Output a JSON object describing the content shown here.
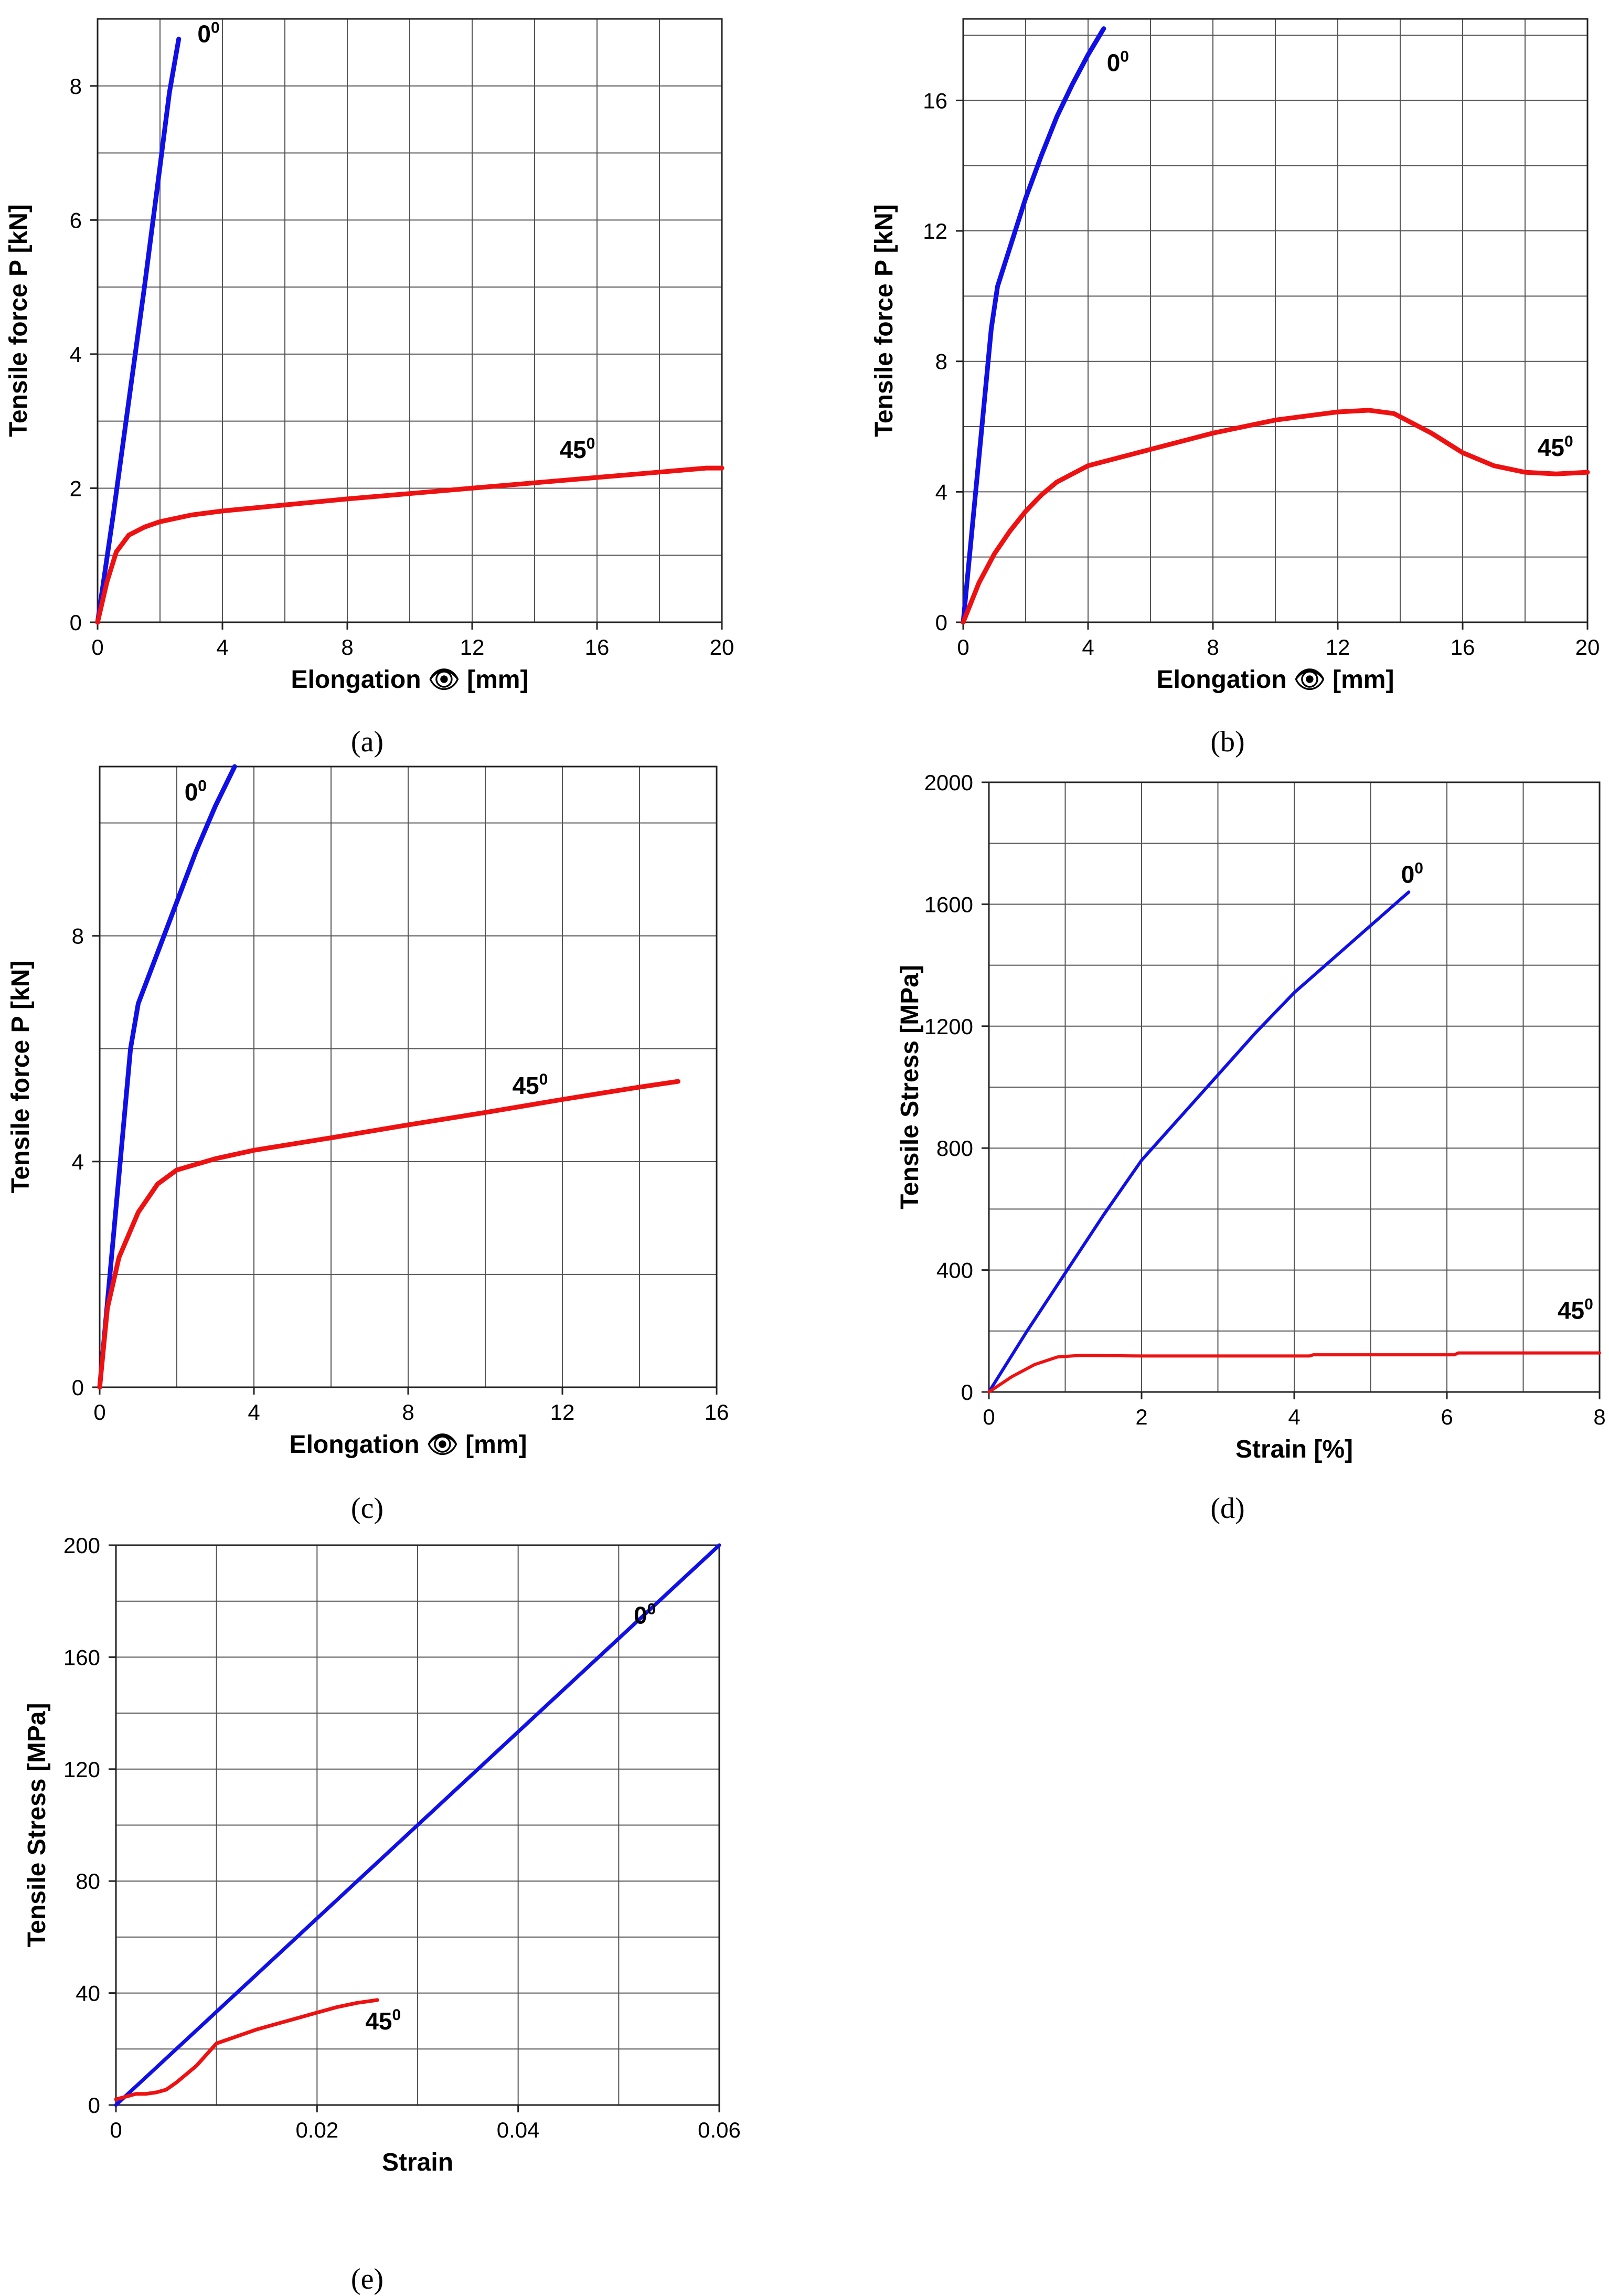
{
  "colors": {
    "s0": "#1010e6",
    "s45": "#ee1111"
  },
  "chart_data": [
    {
      "id": "a",
      "type": "line",
      "caption": "(a)",
      "xlabel": "Elongation 👁 [mm]",
      "ylabel": "Tensile force P [kN]",
      "xlim": [
        0,
        20
      ],
      "ylim": [
        0,
        9
      ],
      "xticks": [
        0,
        4,
        8,
        12,
        16,
        20
      ],
      "yticks": [
        0,
        2,
        4,
        6,
        8
      ],
      "xgrid_step": 2,
      "ygrid_step": 1,
      "series": [
        {
          "name": "0",
          "sup": "0",
          "color_key": "s0",
          "label_at": [
            3.2,
            8.65
          ],
          "x": [
            0,
            0.5,
            1.0,
            1.5,
            2.0,
            2.3,
            2.6
          ],
          "y": [
            0,
            1.6,
            3.3,
            5.0,
            6.8,
            7.9,
            8.7
          ]
        },
        {
          "name": "45",
          "sup": "0",
          "color_key": "s45",
          "label_at": [
            14.8,
            2.45
          ],
          "x": [
            0,
            0.3,
            0.6,
            1.0,
            1.5,
            2.0,
            3.0,
            4.0,
            6.0,
            8.0,
            10.0,
            12.0,
            14.0,
            16.0,
            18.0,
            19.5,
            20.0
          ],
          "y": [
            0,
            0.6,
            1.05,
            1.3,
            1.42,
            1.5,
            1.6,
            1.66,
            1.75,
            1.84,
            1.92,
            2.0,
            2.08,
            2.16,
            2.24,
            2.3,
            2.3
          ]
        }
      ]
    },
    {
      "id": "b",
      "type": "line",
      "caption": "(b)",
      "xlabel": "Elongation 👁 [mm]",
      "ylabel": "Tensile force P [kN]",
      "xlim": [
        0,
        20
      ],
      "ylim": [
        0,
        18.5
      ],
      "xticks": [
        0,
        4,
        8,
        12,
        16,
        20
      ],
      "yticks": [
        0,
        4,
        8,
        12,
        16
      ],
      "xgrid_step": 2,
      "ygrid_step": 2,
      "series": [
        {
          "name": "0",
          "sup": "0",
          "color_key": "s0",
          "label_at": [
            4.6,
            16.9
          ],
          "x": [
            0,
            0.3,
            0.6,
            0.9,
            1.1,
            1.5,
            2.0,
            2.5,
            3.0,
            3.5,
            4.0,
            4.5
          ],
          "y": [
            0,
            3.0,
            6.0,
            9.0,
            10.3,
            11.5,
            13.0,
            14.3,
            15.5,
            16.5,
            17.4,
            18.2
          ]
        },
        {
          "name": "45",
          "sup": "0",
          "color_key": "s45",
          "label_at": [
            18.4,
            5.1
          ],
          "x": [
            0,
            0.5,
            1.0,
            1.5,
            2.0,
            2.5,
            3.0,
            4.0,
            6.0,
            8.0,
            10.0,
            12.0,
            13.0,
            13.8,
            15.0,
            16.0,
            17.0,
            18.0,
            19.0,
            20.0
          ],
          "y": [
            0,
            1.2,
            2.1,
            2.8,
            3.4,
            3.9,
            4.3,
            4.8,
            5.3,
            5.8,
            6.2,
            6.45,
            6.5,
            6.4,
            5.8,
            5.2,
            4.8,
            4.6,
            4.55,
            4.6
          ]
        }
      ]
    },
    {
      "id": "c",
      "type": "line",
      "caption": "(c)",
      "xlabel": "Elongation 👁 [mm]",
      "ylabel": "Tensile force P [kN]",
      "xlim": [
        0,
        16
      ],
      "ylim": [
        0,
        11
      ],
      "xticks": [
        0,
        4,
        8,
        12,
        16
      ],
      "yticks": [
        0,
        4,
        8
      ],
      "xgrid_step": 2,
      "ygrid_step": 2,
      "series": [
        {
          "name": "0",
          "sup": "0",
          "color_key": "s0",
          "label_at": [
            2.2,
            10.4
          ],
          "x": [
            0,
            0.2,
            0.4,
            0.6,
            0.8,
            1.0,
            1.5,
            2.0,
            2.5,
            3.0,
            3.5
          ],
          "y": [
            0,
            1.5,
            3.0,
            4.5,
            6.0,
            6.8,
            7.7,
            8.6,
            9.5,
            10.3,
            11.0
          ]
        },
        {
          "name": "45",
          "sup": "0",
          "color_key": "s45",
          "label_at": [
            10.7,
            5.2
          ],
          "x": [
            0,
            0.2,
            0.5,
            1.0,
            1.5,
            2.0,
            3.0,
            4.0,
            6.0,
            8.0,
            10.0,
            12.0,
            14.0,
            15.0
          ],
          "y": [
            0,
            1.4,
            2.3,
            3.1,
            3.6,
            3.85,
            4.05,
            4.2,
            4.42,
            4.65,
            4.87,
            5.1,
            5.32,
            5.42
          ]
        }
      ]
    },
    {
      "id": "d",
      "type": "line",
      "caption": "(d)",
      "xlabel": "Strain [%]",
      "ylabel": "Tensile Stress [MPa]",
      "xlim": [
        0,
        8
      ],
      "ylim": [
        0,
        2000
      ],
      "xticks": [
        0,
        2,
        4,
        6,
        8
      ],
      "yticks": [
        0,
        400,
        800,
        1200,
        1600,
        2000
      ],
      "xgrid_step": 1,
      "ygrid_step": 200,
      "series": [
        {
          "name": "0",
          "sup": "0",
          "color_key": "s0",
          "label_at": [
            5.4,
            1670
          ],
          "x": [
            0,
            0.5,
            1.0,
            1.5,
            2.0,
            2.5,
            3.0,
            3.5,
            4.0,
            4.5,
            5.0,
            5.5
          ],
          "y": [
            0,
            200,
            390,
            580,
            760,
            900,
            1040,
            1180,
            1310,
            1420,
            1530,
            1640
          ]
        },
        {
          "name": "45",
          "sup": "0",
          "color_key": "s45",
          "label_at": [
            7.45,
            240
          ],
          "x": [
            0,
            0.3,
            0.6,
            0.9,
            1.2,
            2.0,
            3.0,
            4.2,
            4.25,
            6.1,
            6.15,
            8.0
          ],
          "y": [
            0,
            50,
            90,
            115,
            120,
            118,
            118,
            118,
            122,
            122,
            128,
            128
          ]
        }
      ]
    },
    {
      "id": "e",
      "type": "line",
      "caption": "(e)",
      "xlabel": "Strain",
      "ylabel": "Tensile Stress [MPa]",
      "xlim": [
        0,
        0.06
      ],
      "ylim": [
        0,
        200
      ],
      "xticks": [
        0,
        0.02,
        0.04,
        0.06
      ],
      "yticks": [
        0,
        40,
        80,
        120,
        160,
        200
      ],
      "xgrid_step": 0.01,
      "ygrid_step": 20,
      "series": [
        {
          "name": "0",
          "sup": "0",
          "color_key": "s0",
          "label_at": [
            0.0515,
            172
          ],
          "x": [
            0,
            0.06
          ],
          "y": [
            0,
            200
          ]
        },
        {
          "name": "45",
          "sup": "0",
          "color_key": "s45",
          "label_at": [
            0.0248,
            27
          ],
          "x": [
            0,
            0.001,
            0.002,
            0.003,
            0.004,
            0.005,
            0.006,
            0.007,
            0.008,
            0.009,
            0.01,
            0.012,
            0.014,
            0.016,
            0.018,
            0.02,
            0.022,
            0.024,
            0.026
          ],
          "y": [
            2,
            3,
            4,
            4,
            4.5,
            5.5,
            8,
            11,
            14,
            18,
            22,
            24.5,
            27,
            29,
            31,
            33,
            35,
            36.5,
            37.5
          ]
        }
      ]
    }
  ]
}
